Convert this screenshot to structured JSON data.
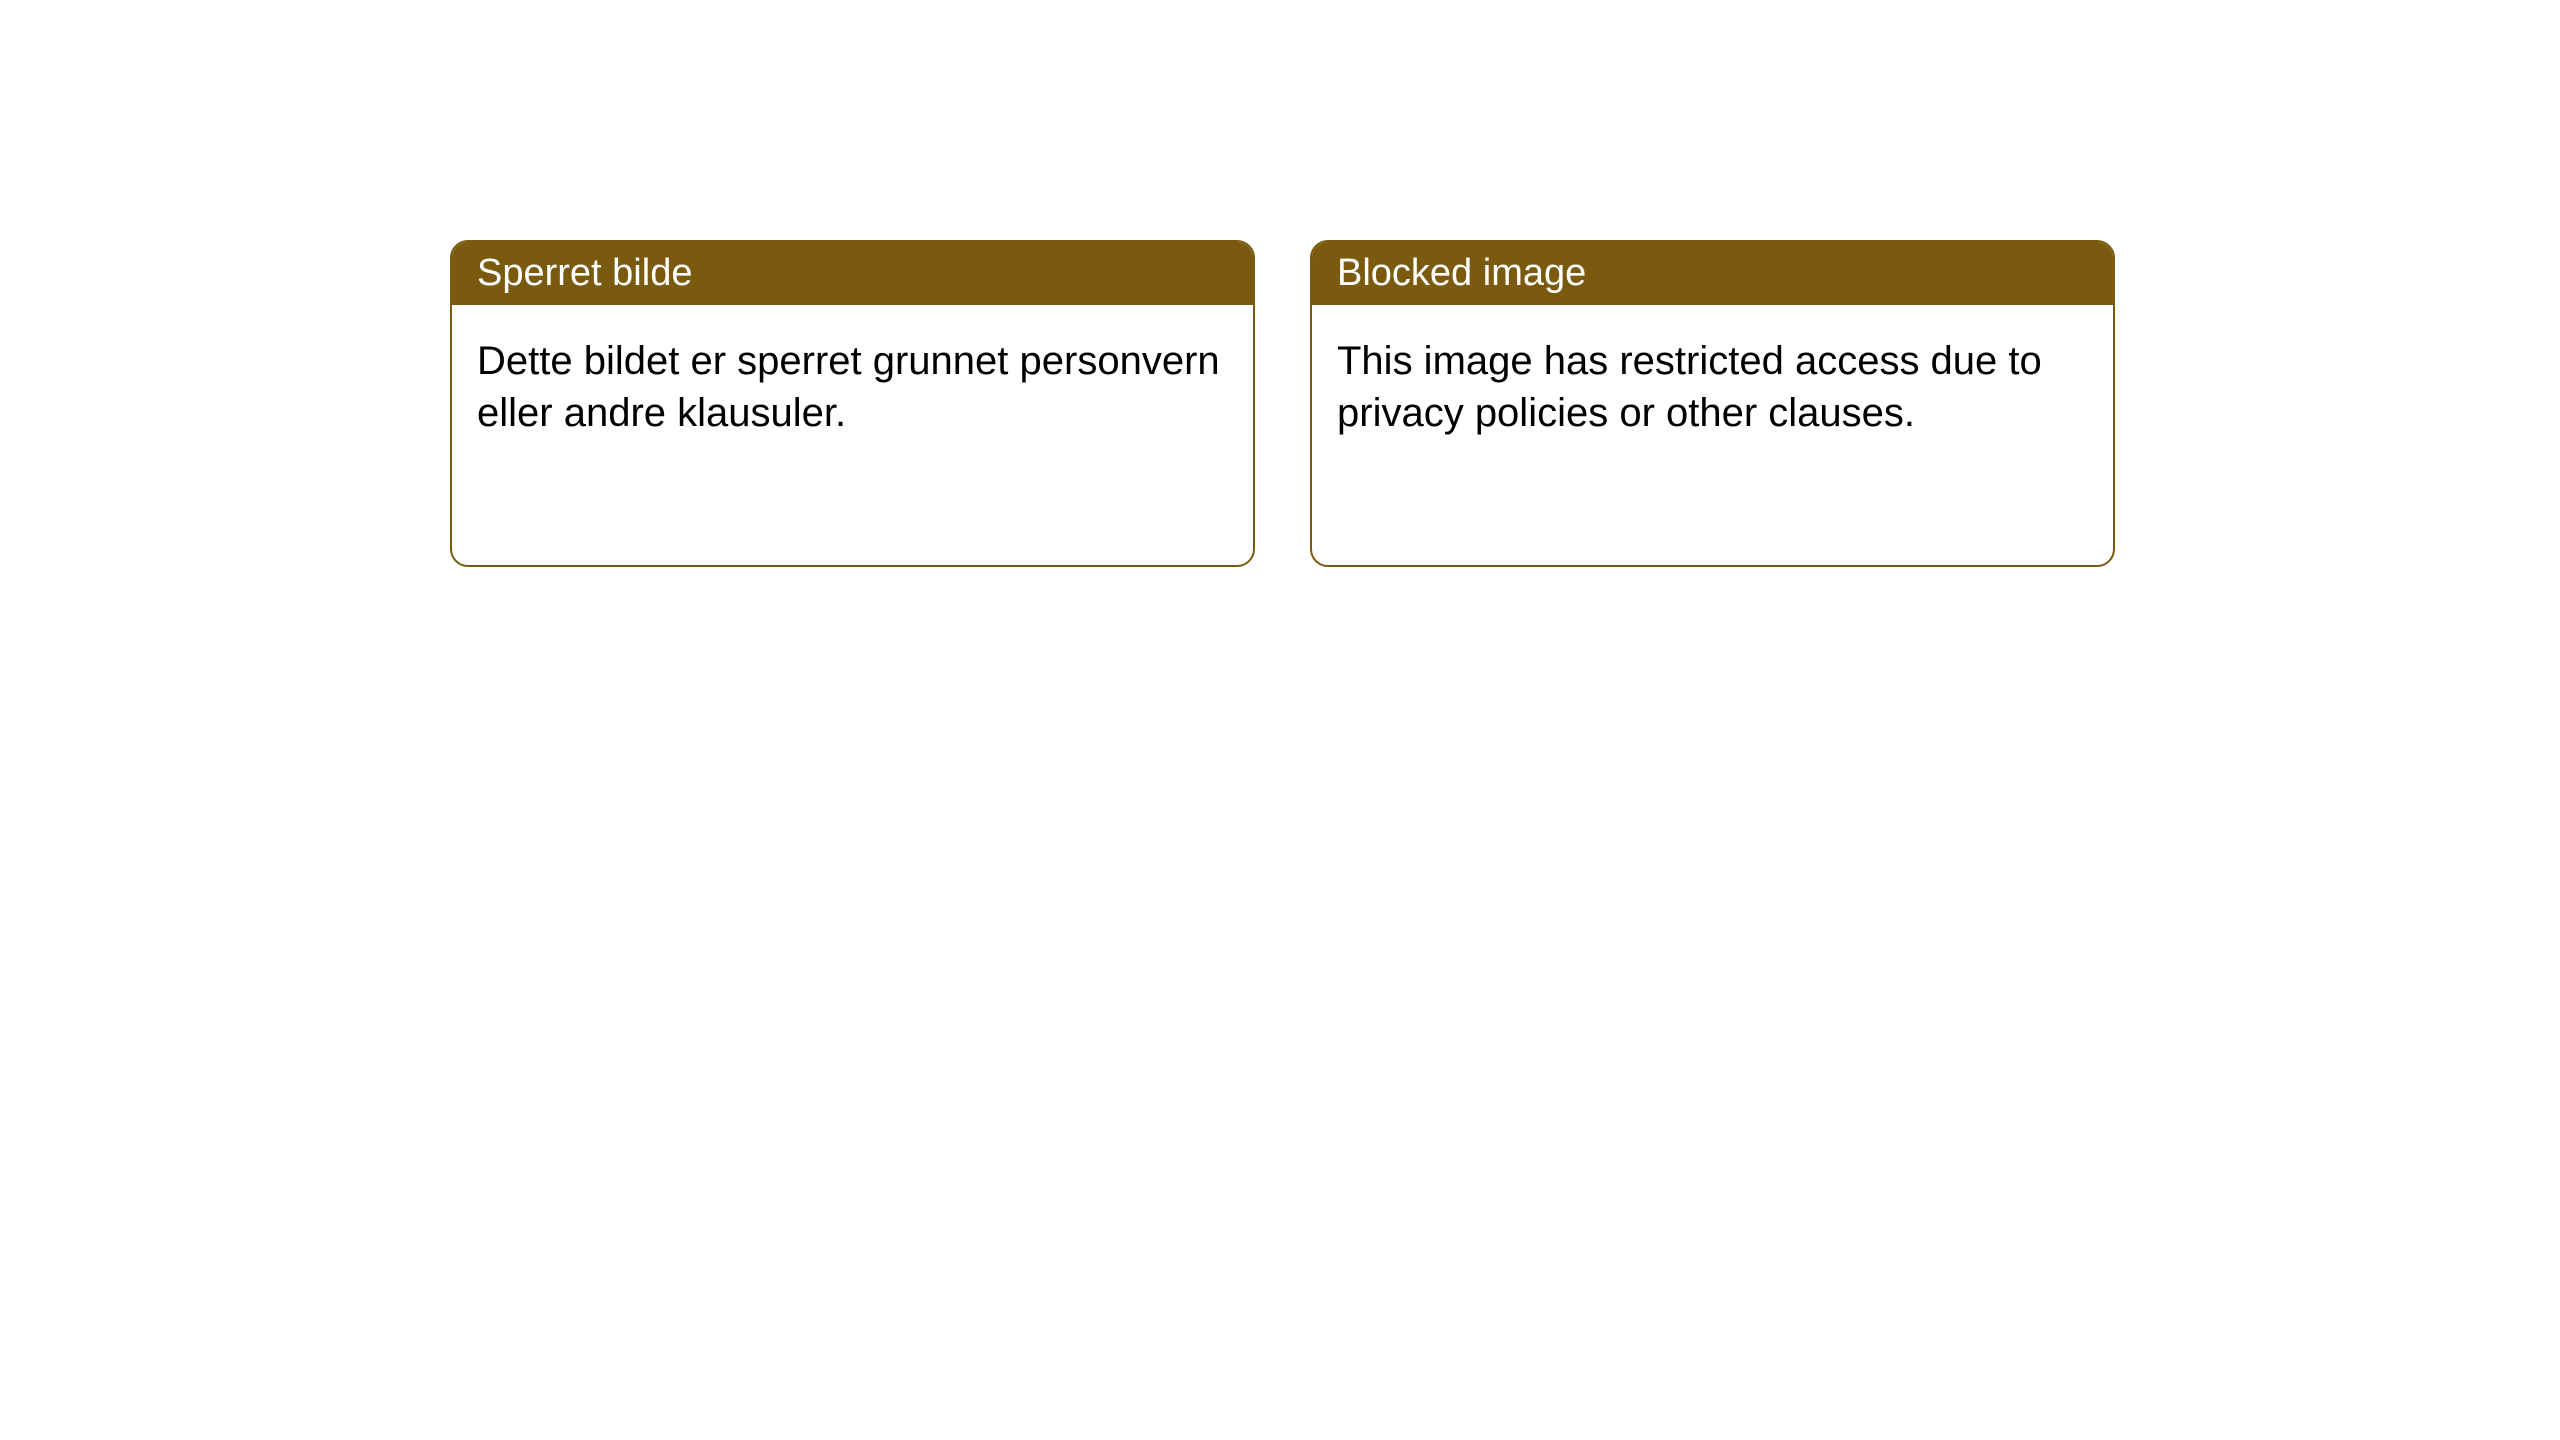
{
  "notices": [
    {
      "title": "Sperret bilde",
      "message": "Dette bildet er sperret grunnet personvern eller andre klausuler."
    },
    {
      "title": "Blocked image",
      "message": "This image has restricted access due to privacy policies or other clauses."
    }
  ],
  "styling": {
    "header_bg_color": "#7a5a0f",
    "header_text_color": "#ffffff",
    "border_color": "#7a5a0f",
    "border_radius": 18,
    "card_bg_color": "#ffffff",
    "body_text_color": "#000000",
    "title_fontsize": 38,
    "message_fontsize": 40,
    "page_bg_color": "#ffffff"
  }
}
